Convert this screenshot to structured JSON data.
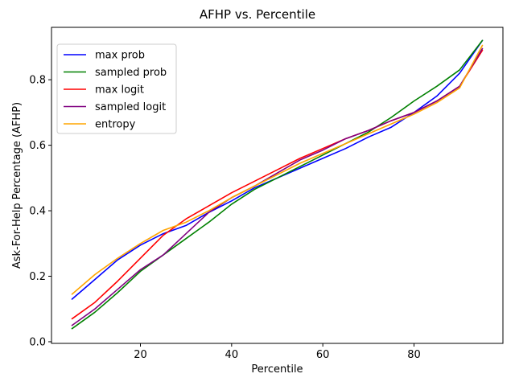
{
  "chart_data": {
    "type": "line",
    "title": "AFHP vs. Percentile",
    "xlabel": "Percentile",
    "ylabel": "Ask-For-Help Percentage (AFHP)",
    "xlim": [
      0.5,
      99.5
    ],
    "ylim": [
      -0.005,
      0.96
    ],
    "xticks": [
      20,
      40,
      60,
      80
    ],
    "yticks": [
      0.0,
      0.2,
      0.4,
      0.6,
      0.8
    ],
    "ytick_labels": [
      "0.0",
      "0.2",
      "0.4",
      "0.6",
      "0.8"
    ],
    "grid": false,
    "legend_position": "top-left",
    "x": [
      5,
      10,
      15,
      20,
      25,
      30,
      35,
      40,
      45,
      50,
      55,
      60,
      65,
      70,
      75,
      80,
      85,
      90,
      95
    ],
    "series": [
      {
        "name": "max prob",
        "color": "#0000ff",
        "values": [
          0.13,
          0.19,
          0.25,
          0.295,
          0.33,
          0.355,
          0.395,
          0.43,
          0.47,
          0.5,
          0.53,
          0.56,
          0.59,
          0.625,
          0.655,
          0.7,
          0.75,
          0.82,
          0.92
        ]
      },
      {
        "name": "sampled prob",
        "color": "#008000",
        "values": [
          0.04,
          0.09,
          0.15,
          0.215,
          0.265,
          0.315,
          0.365,
          0.42,
          0.465,
          0.5,
          0.535,
          0.57,
          0.605,
          0.64,
          0.685,
          0.735,
          0.78,
          0.83,
          0.92
        ]
      },
      {
        "name": "max logit",
        "color": "#ff0000",
        "values": [
          0.07,
          0.12,
          0.185,
          0.255,
          0.325,
          0.375,
          0.415,
          0.455,
          0.49,
          0.525,
          0.56,
          0.59,
          0.62,
          0.645,
          0.675,
          0.7,
          0.735,
          0.78,
          0.89
        ]
      },
      {
        "name": "sampled logit",
        "color": "#800080",
        "values": [
          0.05,
          0.1,
          0.16,
          0.22,
          0.265,
          0.33,
          0.395,
          0.44,
          0.475,
          0.515,
          0.555,
          0.585,
          0.62,
          0.645,
          0.675,
          0.7,
          0.735,
          0.78,
          0.895
        ]
      },
      {
        "name": "entropy",
        "color": "#ffa500",
        "values": [
          0.145,
          0.205,
          0.255,
          0.3,
          0.34,
          0.365,
          0.4,
          0.44,
          0.475,
          0.51,
          0.545,
          0.575,
          0.605,
          0.635,
          0.665,
          0.695,
          0.73,
          0.775,
          0.905
        ]
      }
    ]
  }
}
